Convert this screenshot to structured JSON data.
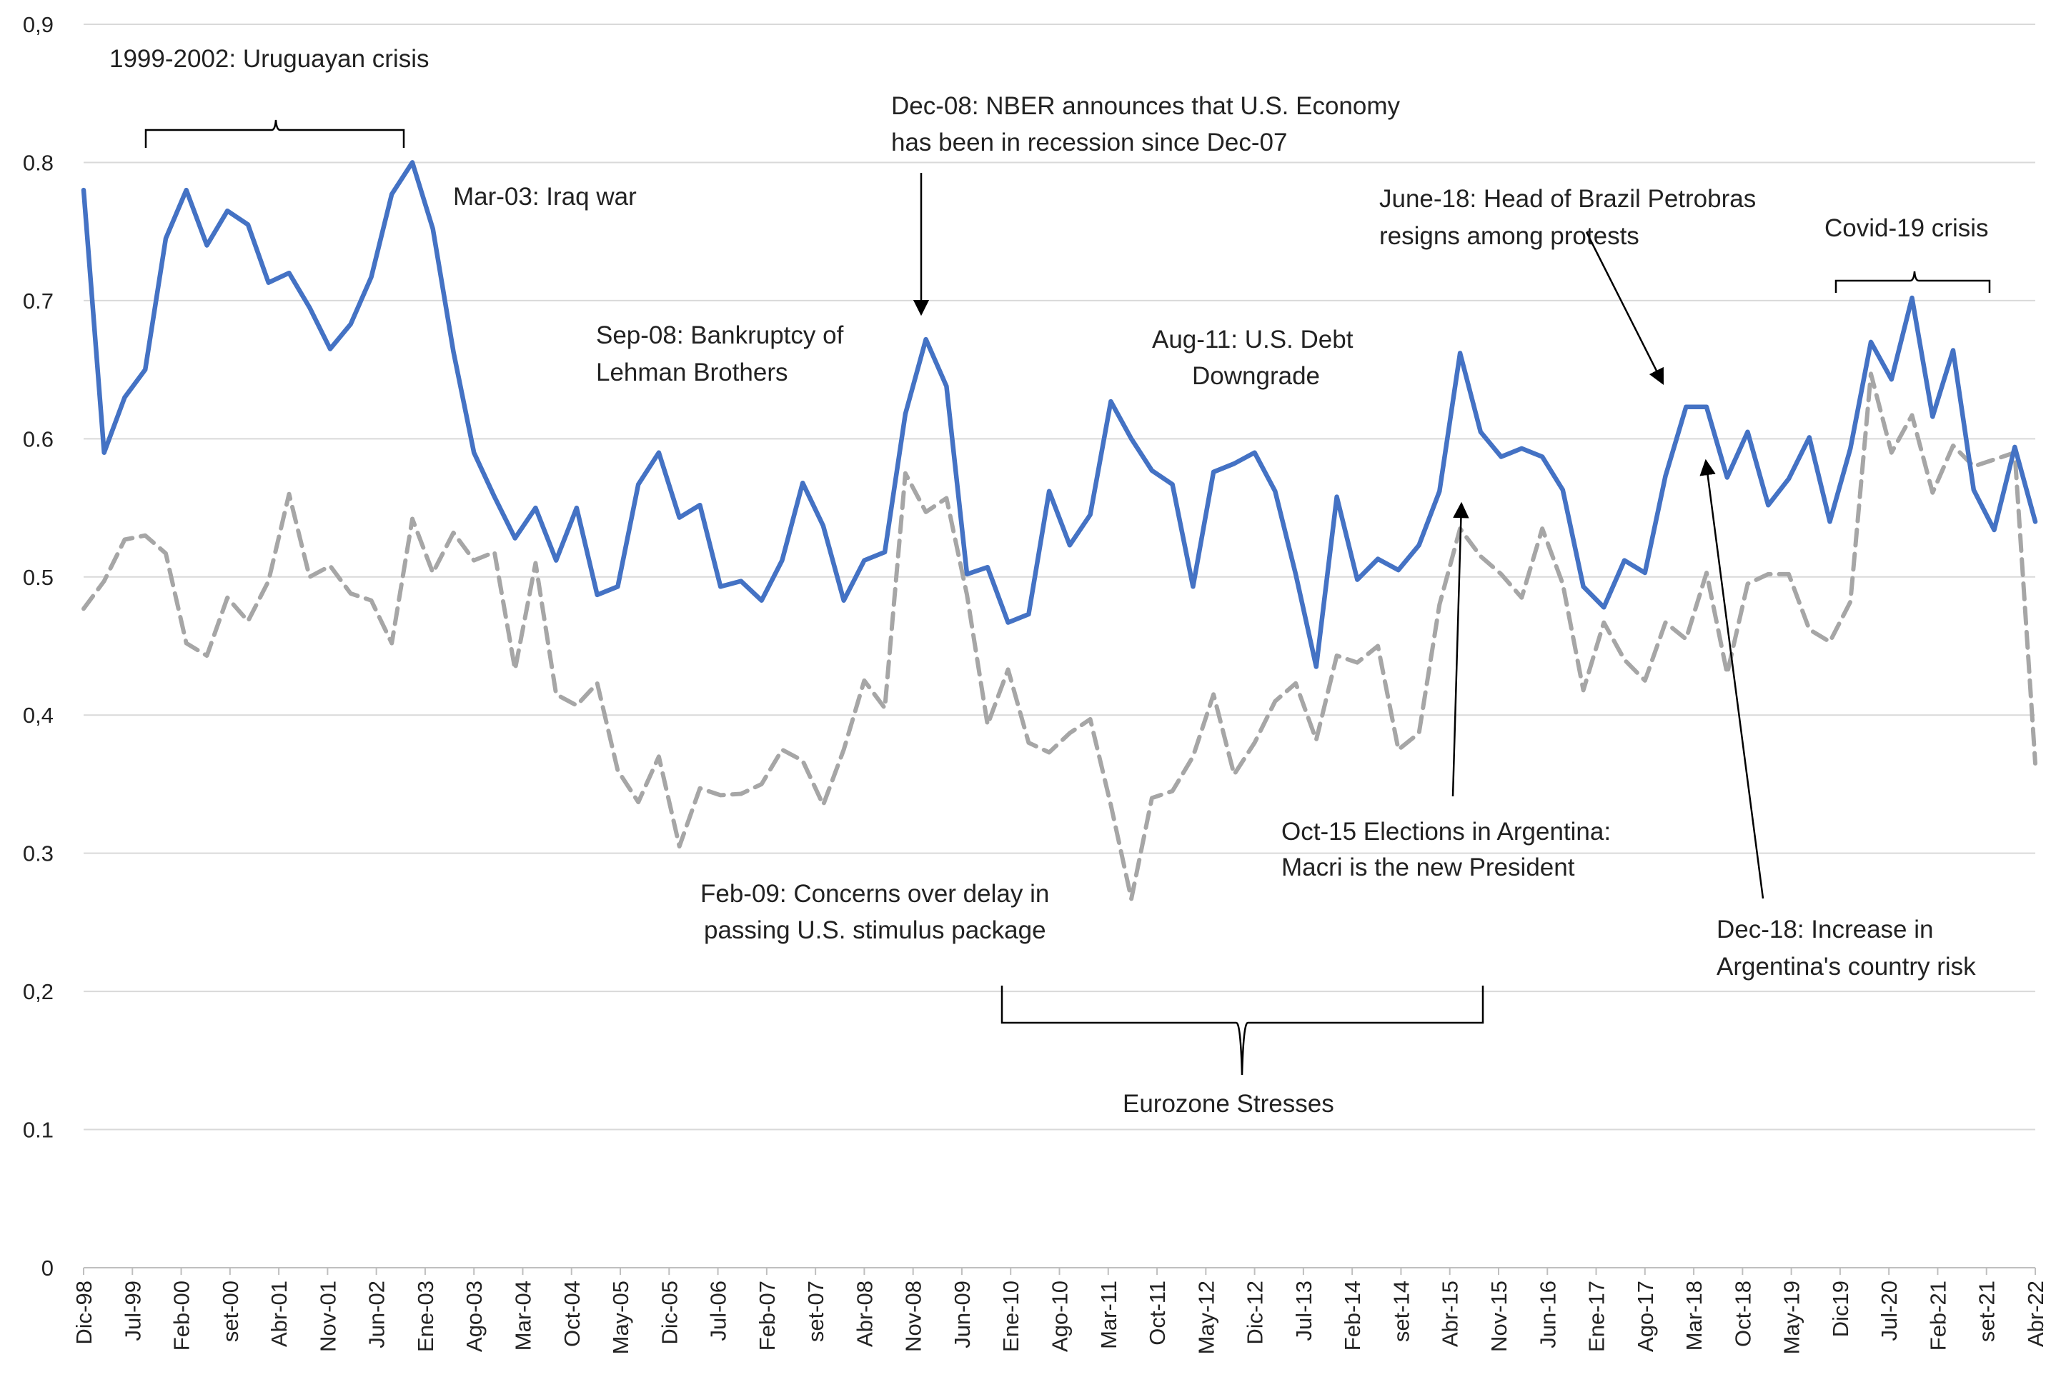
{
  "chart_data": {
    "type": "line",
    "title": "",
    "xlabel": "",
    "ylabel": "",
    "ylim": [
      0,
      0.9
    ],
    "grid": true,
    "legend": "none",
    "y_ticks": [
      {
        "value": 0,
        "label": "0"
      },
      {
        "value": 0.1,
        "label": "0.1"
      },
      {
        "value": 0.2,
        "label": "0,2"
      },
      {
        "value": 0.3,
        "label": "0.3"
      },
      {
        "value": 0.4,
        "label": "0,4"
      },
      {
        "value": 0.5,
        "label": "0.5"
      },
      {
        "value": 0.6,
        "label": "0.6"
      },
      {
        "value": 0.7,
        "label": "0.7"
      },
      {
        "value": 0.8,
        "label": "0.8"
      },
      {
        "value": 0.9,
        "label": "0,9"
      }
    ],
    "x_tick_labels": [
      "Dic-98",
      "Jul-99",
      "Feb-00",
      "set-00",
      "Abr-01",
      "Nov-01",
      "Jun-02",
      "Ene-03",
      "Ago-03",
      "Mar-04",
      "Oct-04",
      "May-05",
      "Dic-05",
      "Jul-06",
      "Feb-07",
      "set-07",
      "Abr-08",
      "Nov-08",
      "Jun-09",
      "Ene-10",
      "Ago-10",
      "Mar-11",
      "Oct-11",
      "May-12",
      "Dic-12",
      "Jul-13",
      "Feb-14",
      "set-14",
      "Abr-15",
      "Nov-15",
      "Jun-16",
      "Ene-17",
      "Ago-17",
      "Mar-18",
      "Oct-18",
      "May-19",
      "Dic19",
      "Jul-20",
      "Feb-21",
      "set-21",
      "Abr-22"
    ],
    "series": [
      {
        "name": "solid",
        "color": "#4472C4",
        "style": "solid",
        "values": [
          0.78,
          0.59,
          0.63,
          0.65,
          0.745,
          0.78,
          0.74,
          0.765,
          0.755,
          0.713,
          0.72,
          0.695,
          0.665,
          0.683,
          0.717,
          0.777,
          0.8,
          0.752,
          0.663,
          0.59,
          0.558,
          0.528,
          0.55,
          0.512,
          0.55,
          0.487,
          0.493,
          0.567,
          0.59,
          0.543,
          0.552,
          0.493,
          0.497,
          0.483,
          0.512,
          0.568,
          0.537,
          0.483,
          0.512,
          0.518,
          0.618,
          0.672,
          0.638,
          0.502,
          0.507,
          0.467,
          0.473,
          0.562,
          0.523,
          0.545,
          0.627,
          0.6,
          0.577,
          0.567,
          0.493,
          0.576,
          0.582,
          0.59,
          0.562,
          0.502,
          0.435,
          0.558,
          0.498,
          0.513,
          0.505,
          0.523,
          0.562,
          0.662,
          0.605,
          0.587,
          0.593,
          0.587,
          0.563,
          0.493,
          0.478,
          0.512,
          0.503,
          0.573,
          0.623,
          0.623,
          0.572,
          0.605,
          0.552,
          0.571,
          0.601,
          0.54,
          0.593,
          0.67,
          0.643,
          0.702,
          0.616,
          0.664,
          0.563,
          0.534,
          0.594,
          0.54
        ]
      },
      {
        "name": "dashed",
        "color": "#A6A6A6",
        "style": "dashed",
        "values": [
          0.477,
          0.497,
          0.527,
          0.53,
          0.517,
          0.452,
          0.443,
          0.485,
          0.468,
          0.497,
          0.56,
          0.5,
          0.508,
          0.488,
          0.483,
          0.452,
          0.542,
          0.503,
          0.532,
          0.512,
          0.518,
          0.433,
          0.51,
          0.415,
          0.407,
          0.423,
          0.36,
          0.337,
          0.37,
          0.305,
          0.347,
          0.342,
          0.343,
          0.35,
          0.375,
          0.367,
          0.335,
          0.375,
          0.425,
          0.405,
          0.575,
          0.547,
          0.557,
          0.487,
          0.393,
          0.433,
          0.38,
          0.373,
          0.387,
          0.397,
          0.335,
          0.267,
          0.34,
          0.345,
          0.37,
          0.415,
          0.357,
          0.38,
          0.41,
          0.423,
          0.382,
          0.443,
          0.438,
          0.45,
          0.375,
          0.387,
          0.48,
          0.535,
          0.515,
          0.502,
          0.485,
          0.535,
          0.495,
          0.418,
          0.467,
          0.44,
          0.425,
          0.467,
          0.455,
          0.503,
          0.43,
          0.495,
          0.502,
          0.502,
          0.462,
          0.453,
          0.482,
          0.647,
          0.59,
          0.617,
          0.561,
          0.595,
          0.58,
          0.585,
          0.59,
          0.365
        ]
      }
    ],
    "annotations": {
      "uruguay": "1999-2002: Uruguayan crisis",
      "iraq": "Mar-03: Iraq war",
      "nber_1": "Dec-08: NBER announces that U.S. Economy",
      "nber_2": "has been  in recession since Dec-07",
      "lehman_1": "Sep-08: Bankruptcy of",
      "lehman_2": "Lehman Brothers",
      "debt_1": "Aug-11: U.S. Debt",
      "debt_2": "Downgrade",
      "petrobras_1": "June-18: Head of Brazil Petrobras",
      "petrobras_2": "resigns among protests",
      "covid": "Covid-19 crisis",
      "elections_1": "Oct-15 Elections in Argentina:",
      "elections_2": "Macri is the new President",
      "stimulus_1": "Feb-09: Concerns over delay in",
      "stimulus_2": "passing U.S. stimulus package",
      "country_risk_1": "Dec-18: Increase in",
      "country_risk_2": "Argentina's country risk",
      "eurozone": "Eurozone Stresses"
    }
  }
}
